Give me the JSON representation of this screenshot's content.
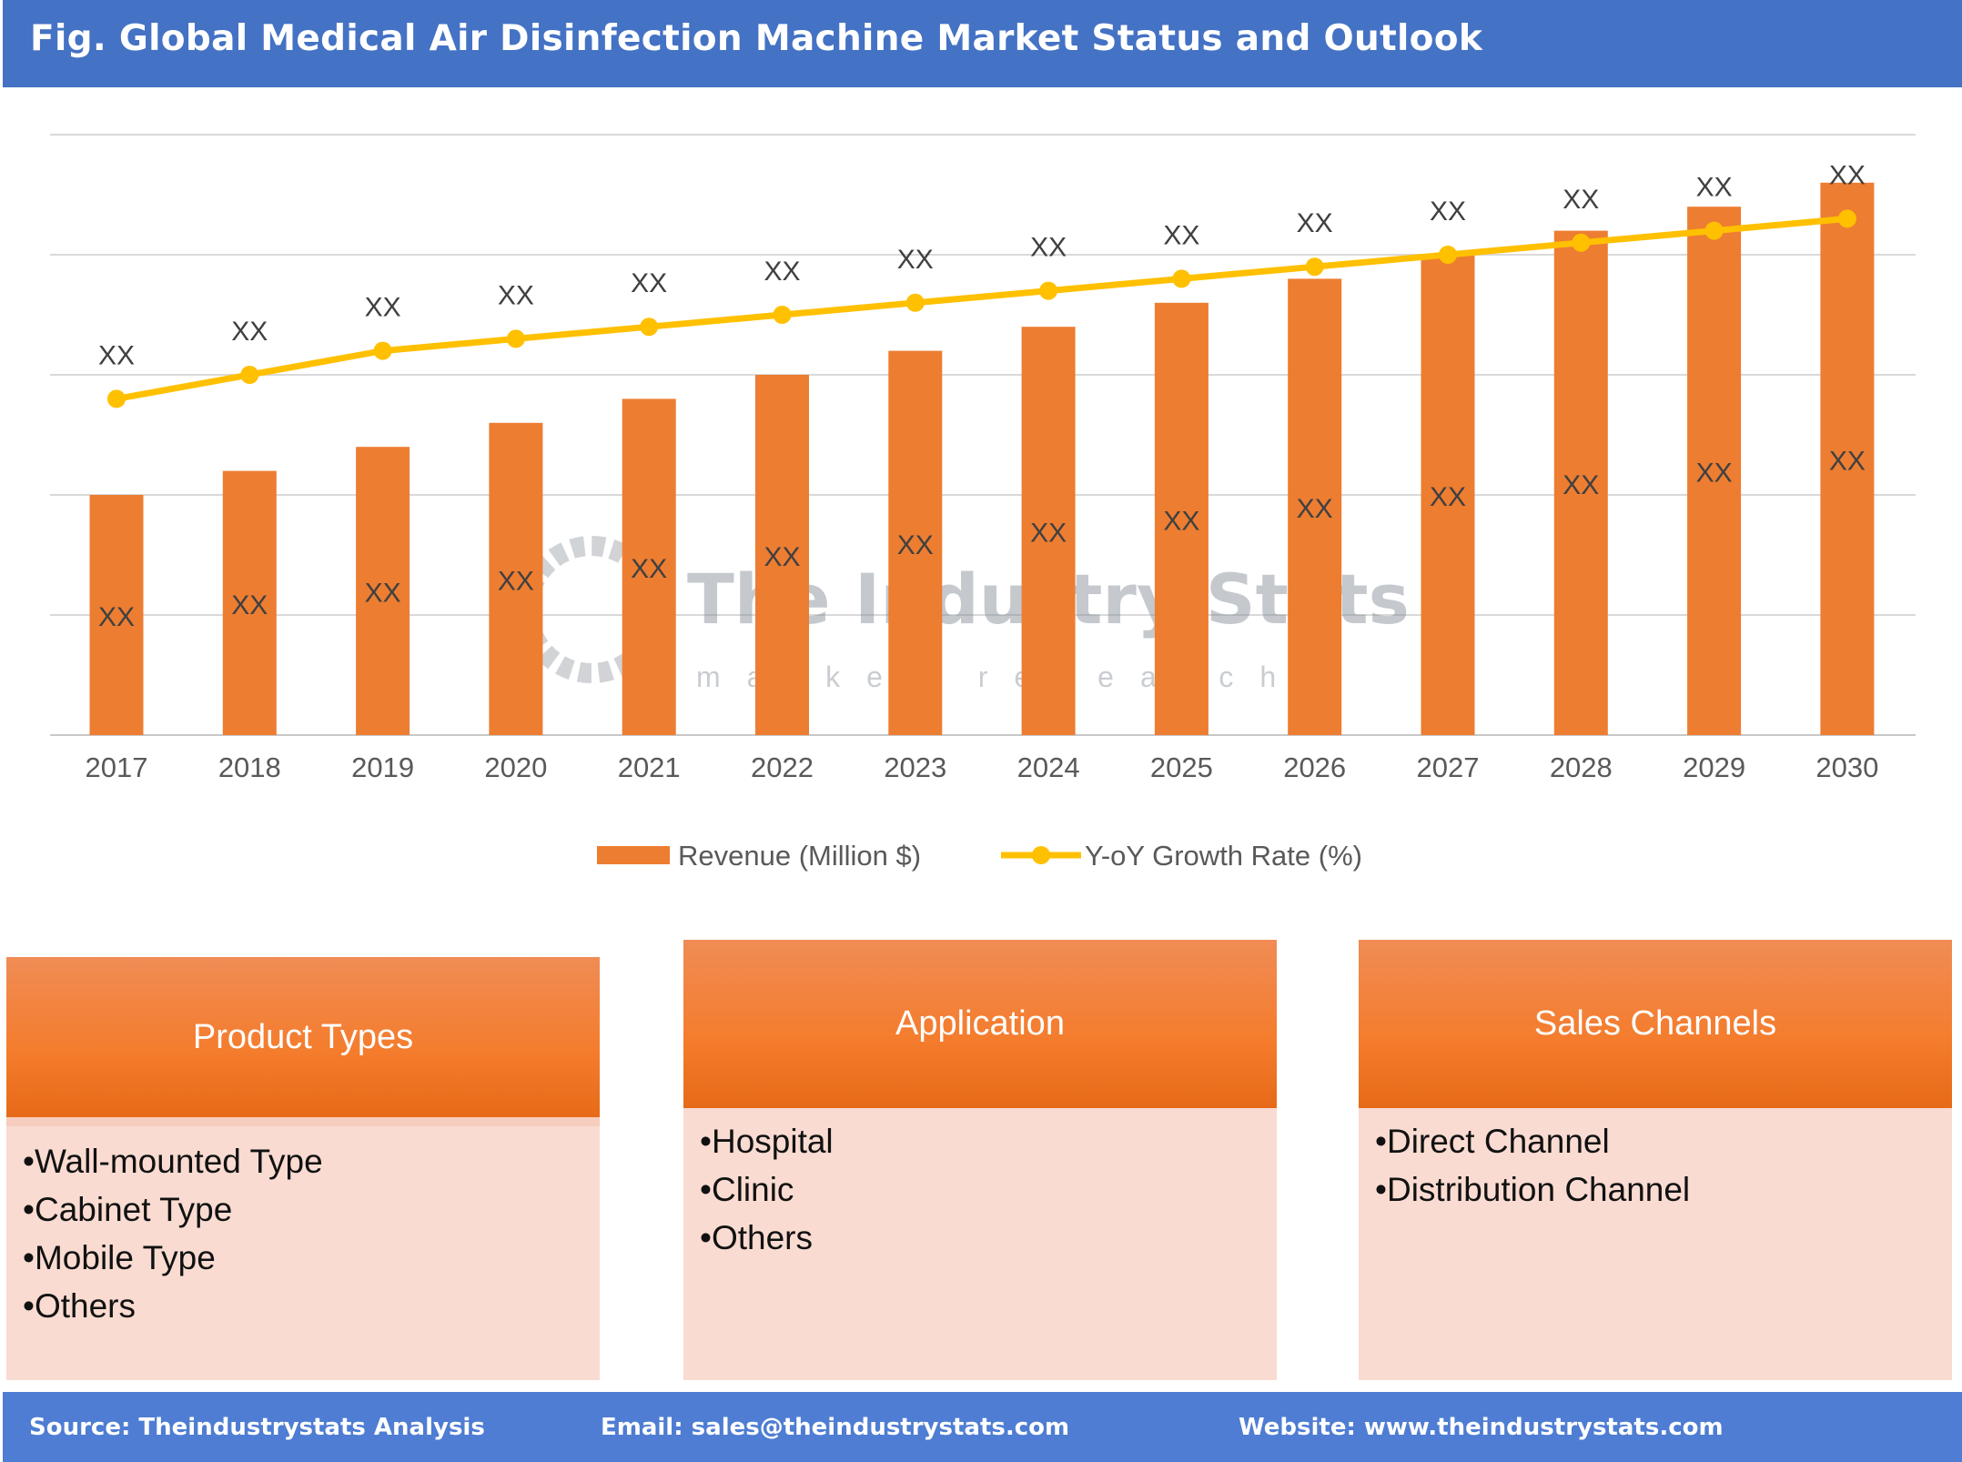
{
  "title": "Fig. Global Medical Air Disinfection Machine Market Status and Outlook",
  "watermark": {
    "name": "The Industry Stats",
    "tagline": "market research"
  },
  "chart_data": {
    "type": "bar+line",
    "categories": [
      "2017",
      "2018",
      "2019",
      "2020",
      "2021",
      "2022",
      "2023",
      "2024",
      "2025",
      "2026",
      "2027",
      "2028",
      "2029",
      "2030"
    ],
    "series": [
      {
        "name": "Revenue (Million $)",
        "type": "bar",
        "color": "#ed7d31",
        "values": [
          2.0,
          2.2,
          2.4,
          2.6,
          2.8,
          3.0,
          3.2,
          3.4,
          3.6,
          3.8,
          4.0,
          4.2,
          4.4,
          4.6
        ],
        "labels": [
          "XX",
          "XX",
          "XX",
          "XX",
          "XX",
          "XX",
          "XX",
          "XX",
          "XX",
          "XX",
          "XX",
          "XX",
          "XX",
          "XX"
        ]
      },
      {
        "name": "Y-oY Growth Rate (%)",
        "type": "line",
        "color": "#ffc000",
        "values": [
          2.8,
          3.0,
          3.2,
          3.3,
          3.4,
          3.5,
          3.6,
          3.7,
          3.8,
          3.9,
          4.0,
          4.1,
          4.2,
          4.3
        ],
        "labels": [
          "XX",
          "XX",
          "XX",
          "XX",
          "XX",
          "XX",
          "XX",
          "XX",
          "XX",
          "XX",
          "XX",
          "XX",
          "XX",
          "XX"
        ]
      }
    ],
    "ylim": [
      0,
      5
    ],
    "grid": true,
    "legend": "bottom"
  },
  "segments": [
    {
      "title": "Product Types",
      "items": [
        "Wall-mounted Type",
        "Cabinet Type",
        "Mobile Type",
        "Others"
      ]
    },
    {
      "title": "Application",
      "items": [
        "Hospital",
        "Clinic",
        "Others"
      ]
    },
    {
      "title": "Sales Channels",
      "items": [
        "Direct Channel",
        "Distribution Channel"
      ]
    }
  ],
  "footer": {
    "source": "Source: Theindustrystats Analysis",
    "email": "Email: sales@theindustrystats.com",
    "website": "Website: www.theindustrystats.com"
  }
}
